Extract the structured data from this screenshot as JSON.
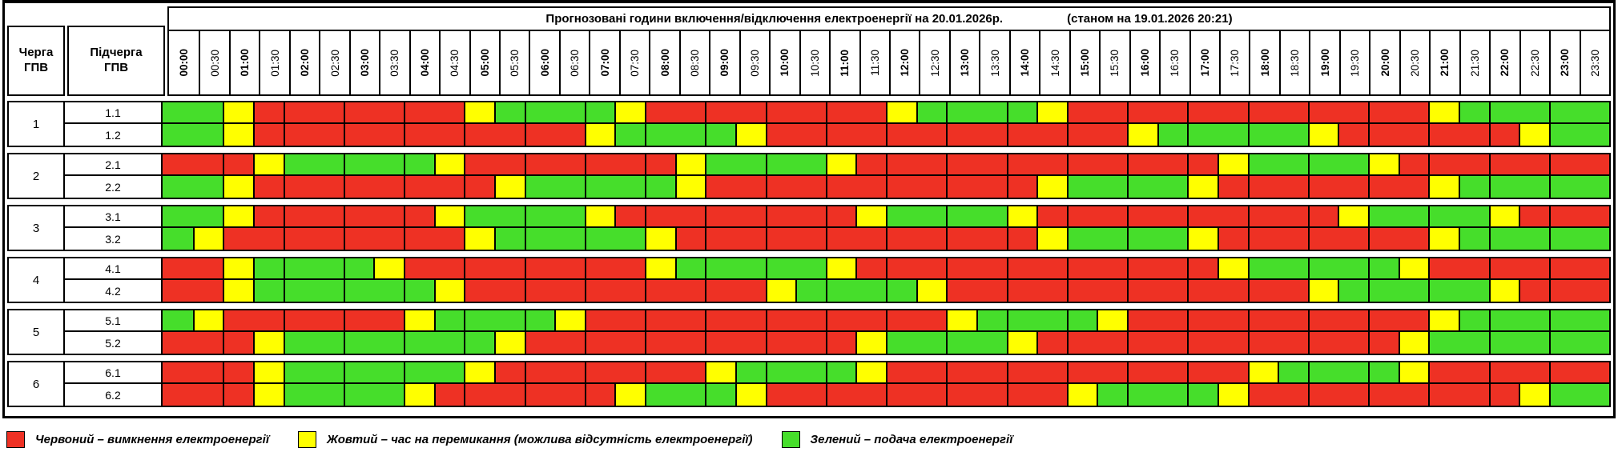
{
  "title": "Прогнозовані години включення/відключення електроенергії на 20.01.2026р.",
  "subtitle": "(станом на 19.01.2026 20:21)",
  "header": {
    "queue_col": "Черга ГПВ",
    "subqueue_col": "Підчерга ГПВ"
  },
  "colors": {
    "R": "#ee3124",
    "Y": "#ffff00",
    "G": "#46de2b"
  },
  "legend": [
    {
      "color": "R",
      "label": "Червоний – вимкнення електроенергії"
    },
    {
      "color": "Y",
      "label": "Жовтий – час на перемикання (можлива відсутність електроенергії)"
    },
    {
      "color": "G",
      "label": "Зелений – подача електроенергії"
    }
  ],
  "chart_data": {
    "type": "heatmap",
    "x": [
      "00:00",
      "00:30",
      "01:00",
      "01:30",
      "02:00",
      "02:30",
      "03:00",
      "03:30",
      "04:00",
      "04:30",
      "05:00",
      "05:30",
      "06:00",
      "06:30",
      "07:00",
      "07:30",
      "08:00",
      "08:30",
      "09:00",
      "09:30",
      "10:00",
      "10:30",
      "11:00",
      "11:30",
      "12:00",
      "12:30",
      "13:00",
      "13:30",
      "14:00",
      "14:30",
      "15:00",
      "15:30",
      "16:00",
      "16:30",
      "17:00",
      "17:30",
      "18:00",
      "18:30",
      "19:00",
      "19:30",
      "20:00",
      "20:30",
      "21:00",
      "21:30",
      "22:00",
      "22:30",
      "23:00",
      "23:30"
    ],
    "value_legend": {
      "R": "відключення",
      "Y": "перемикання",
      "G": "подача"
    },
    "rows": [
      {
        "queue": "1",
        "subqueue": "1.1",
        "slots": "GGYRRRRRRRYGGGGYRRRRRRRRYGGGGYRRRRRRRRRRRRYGGGGG"
      },
      {
        "queue": "1",
        "subqueue": "1.2",
        "slots": "GGYRRRRRRRRRRRYGGGGYRRRRRRRRRRRRYGGGGGYRRRRRRYGG"
      },
      {
        "queue": "2",
        "subqueue": "2.1",
        "slots": "RRRYGGGGGYRRRRRRRYGGGGYRRRRRRRRRRRRYGGGGYRRRRRRR"
      },
      {
        "queue": "2",
        "subqueue": "2.2",
        "slots": "GGYRRRRRRRRYGGGGGYRRRRRRRRRRRYGGGGYRRRRRRRYGGGGG"
      },
      {
        "queue": "3",
        "subqueue": "3.1",
        "slots": "GGYRRRRRRYGGGGYRRRRRRRRYGGGGYRRRRRRRRRRYGGGGYRRR"
      },
      {
        "queue": "3",
        "subqueue": "3.2",
        "slots": "GYRRRRRRRRYGGGGGYRRRRRRRRRRRRYGGGGYRRRRRRRYGGGGG"
      },
      {
        "queue": "4",
        "subqueue": "4.1",
        "slots": "RRYGGGGYRRRRRRRRYGGGGGYRRRRRRRRRRRRYGGGGGYRRRRRR"
      },
      {
        "queue": "4",
        "subqueue": "4.2",
        "slots": "RRYGGGGGGYRRRRRRRRRRYGGGGYRRRRRRRRRRRRYGGGGGYRRR"
      },
      {
        "queue": "5",
        "subqueue": "5.1",
        "slots": "GYRRRRRRYGGGGYRRRRRRRRRRRRYGGGGYRRRRRRRRRRYGGGGG"
      },
      {
        "queue": "5",
        "subqueue": "5.2",
        "slots": "RRRYGGGGGGGYRRRRRRRRRRRYGGGGYRRRRRRRRRRRRYGGGGGG"
      },
      {
        "queue": "6",
        "subqueue": "6.1",
        "slots": "RRRYGGGGGGYRRRRRRRYGGGGYRRRRRRRRRRRRYGGGGYRRRRRR"
      },
      {
        "queue": "6",
        "subqueue": "6.2",
        "slots": "RRRYGGGGYRRRRRRYGGGYRRRRRRRRRRYGGGGYRRRRRRRRRYGG"
      }
    ]
  }
}
